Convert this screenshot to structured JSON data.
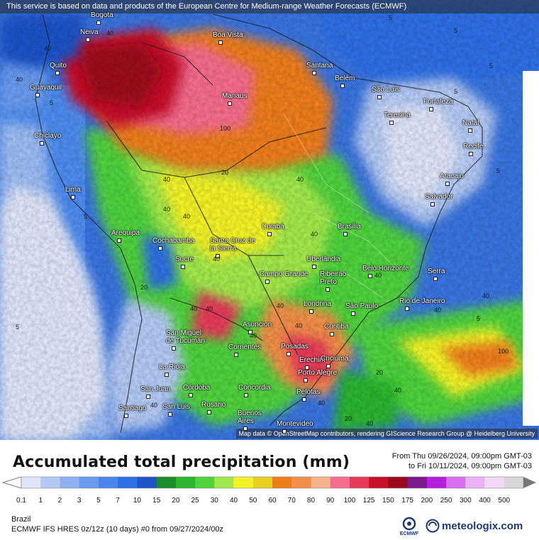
{
  "header": {
    "service_note": "This service is based on data and products of the European Centre for Medium-range Weather Forecasts (ECMWF)"
  },
  "map": {
    "attribution": "Map data © OpenStreetMap contributors, rendering GIScience Research Group @ Heidelberg University",
    "cities": [
      {
        "id": "bogota",
        "name": "Bogota"
      },
      {
        "id": "neiva",
        "name": "Neiva"
      },
      {
        "id": "quito",
        "name": "Quito"
      },
      {
        "id": "guayaquil",
        "name": "Guayaquil"
      },
      {
        "id": "chiclayo",
        "name": "Chiclayo"
      },
      {
        "id": "lima",
        "name": "Lima"
      },
      {
        "id": "arequipa",
        "name": "Arequipa"
      },
      {
        "id": "boa-vista",
        "name": "Boa Vista"
      },
      {
        "id": "manaus",
        "name": "Manaus"
      },
      {
        "id": "santana",
        "name": "Santana"
      },
      {
        "id": "belem",
        "name": "Belém"
      },
      {
        "id": "sao-luis",
        "name": "São Luís"
      },
      {
        "id": "fortaleza",
        "name": "Fortaleza"
      },
      {
        "id": "teresina",
        "name": "Teresina"
      },
      {
        "id": "natal",
        "name": "Natal"
      },
      {
        "id": "recife",
        "name": "Recife"
      },
      {
        "id": "aracaju",
        "name": "Aracaju"
      },
      {
        "id": "salvador",
        "name": "Salvador"
      },
      {
        "id": "cuiaba",
        "name": "Cuiabá"
      },
      {
        "id": "brasilia",
        "name": "Brasilia"
      },
      {
        "id": "cochabamba",
        "name": "Cochabamba"
      },
      {
        "id": "santa-cruz",
        "name": "Santa Cruz de la Sierra"
      },
      {
        "id": "sucre",
        "name": "Sucre"
      },
      {
        "id": "uberlandia",
        "name": "Uberlândia"
      },
      {
        "id": "campo-grande",
        "name": "Campo Grande"
      },
      {
        "id": "ribeirao-preto",
        "name": "Ribeirão Preto"
      },
      {
        "id": "belo-horizonte",
        "name": "Belo Horizonte"
      },
      {
        "id": "serra",
        "name": "Serra"
      },
      {
        "id": "londrina",
        "name": "Londrina"
      },
      {
        "id": "sao-paulo",
        "name": "São Paulo"
      },
      {
        "id": "rio-de-janeiro",
        "name": "Rio de Janeiro"
      },
      {
        "id": "asuncion",
        "name": "Asuncion"
      },
      {
        "id": "curitiba",
        "name": "Curitiba"
      },
      {
        "id": "san-miguel",
        "name": "San Miguel de Tucumán"
      },
      {
        "id": "corrientes",
        "name": "Corrientes"
      },
      {
        "id": "posadas",
        "name": "Posadas"
      },
      {
        "id": "erechim",
        "name": "Erechim"
      },
      {
        "id": "criciuma",
        "name": "Criciúma"
      },
      {
        "id": "la-rioja",
        "name": "La Rioja"
      },
      {
        "id": "porto-alegre",
        "name": "Porto Alegre"
      },
      {
        "id": "san-juan",
        "name": "San Juan"
      },
      {
        "id": "cordoba",
        "name": "Córdoba"
      },
      {
        "id": "concordia",
        "name": "Concordia"
      },
      {
        "id": "pelotas",
        "name": "Pelotas"
      },
      {
        "id": "rosario",
        "name": "Rosario"
      },
      {
        "id": "santiago",
        "name": "Santiago"
      },
      {
        "id": "san-luis",
        "name": "San Luis"
      },
      {
        "id": "buenos-aires",
        "name": "Buenos Aires"
      },
      {
        "id": "montevideo",
        "name": "Montevideo"
      }
    ],
    "value_labels": [
      {
        "id": "v01",
        "text": "40"
      },
      {
        "id": "v02",
        "text": "40"
      },
      {
        "id": "v03",
        "text": "5"
      },
      {
        "id": "v04",
        "text": "5"
      },
      {
        "id": "v05",
        "text": "5"
      },
      {
        "id": "v06",
        "text": "40"
      },
      {
        "id": "v07",
        "text": "20"
      },
      {
        "id": "v08",
        "text": "40"
      },
      {
        "id": "v09",
        "text": "100"
      },
      {
        "id": "v10",
        "text": "40"
      },
      {
        "id": "v11",
        "text": "5"
      },
      {
        "id": "v12",
        "text": "40"
      },
      {
        "id": "v13",
        "text": "5"
      },
      {
        "id": "v14",
        "text": "40"
      },
      {
        "id": "v15",
        "text": "40"
      },
      {
        "id": "v16",
        "text": "40"
      },
      {
        "id": "v17",
        "text": "40"
      },
      {
        "id": "v18",
        "text": "40"
      },
      {
        "id": "v19",
        "text": "40"
      },
      {
        "id": "v20",
        "text": "5"
      },
      {
        "id": "v21",
        "text": "20"
      },
      {
        "id": "v22",
        "text": "40"
      },
      {
        "id": "v23",
        "text": "40"
      },
      {
        "id": "v24",
        "text": "40"
      },
      {
        "id": "v25",
        "text": "100"
      },
      {
        "id": "v26",
        "text": "40"
      },
      {
        "id": "v27",
        "text": "40"
      },
      {
        "id": "v28",
        "text": "5"
      },
      {
        "id": "v29",
        "text": "40"
      },
      {
        "id": "v30",
        "text": "20"
      },
      {
        "id": "v31",
        "text": "40"
      },
      {
        "id": "v32",
        "text": "40"
      },
      {
        "id": "v33",
        "text": "40"
      },
      {
        "id": "v34",
        "text": "5"
      },
      {
        "id": "v35",
        "text": "5"
      },
      {
        "id": "v36",
        "text": "20"
      }
    ]
  },
  "legend": {
    "title": "Accumulated total precipitation (mm)",
    "from_line": "From Thu 09/26/2024, 09:00pm GMT-03",
    "to_line": "to Fri 10/11/2024, 09:00pm GMT-03",
    "ticks": [
      "0.1",
      "1",
      "2",
      "3",
      "5",
      "7",
      "10",
      "15",
      "20",
      "25",
      "30",
      "40",
      "50",
      "60",
      "70",
      "80",
      "90",
      "100",
      "125",
      "150",
      "175",
      "200",
      "250",
      "300",
      "400",
      "500"
    ],
    "colors": [
      "#dfe4f8",
      "#b3c9f4",
      "#8bb1f1",
      "#6a9bf0",
      "#4a86ee",
      "#2f6fe6",
      "#1f53c8",
      "#1c8c2a",
      "#2cb52e",
      "#4fd23c",
      "#a2e84c",
      "#f2f227",
      "#e8cf22",
      "#ee7d1a",
      "#f28f4a",
      "#f6b288",
      "#f56c8c",
      "#e83a5a",
      "#c8102a",
      "#9c0a1e",
      "#7a1a8c",
      "#b81ee0",
      "#d86ff0",
      "#eab2f2",
      "#f2d9f6",
      "#d6d6d6"
    ]
  },
  "footer": {
    "region": "Brazil",
    "model_line": "ECMWF IFS HRES 0z/12z (10 days) #0 from  09/27/2024/00z",
    "ecmwf_logo_text": "ECMWF",
    "brand": "meteologix.com"
  }
}
